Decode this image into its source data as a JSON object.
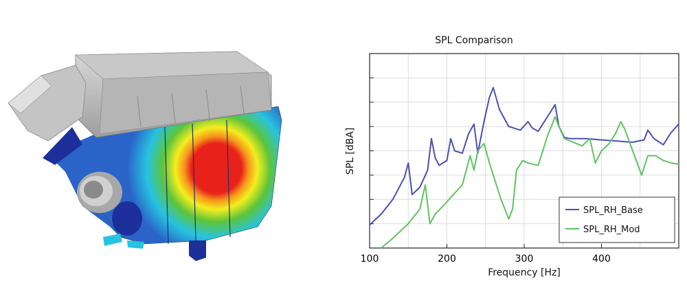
{
  "figure": {
    "left_panel": "fea-contour-airbox",
    "colors": {
      "red": "#e8211b",
      "orange": "#f6951c",
      "yellow": "#f4ee1e",
      "green": "#5ec43b",
      "cyan": "#27c3e0",
      "blue": "#2a64c9",
      "navy": "#1d2f9a",
      "grey": "#bdbdbd"
    }
  },
  "chart_data": {
    "type": "line",
    "title": "SPL Comparison",
    "xlabel": "Frequency [Hz]",
    "ylabel": "SPL [dBA]",
    "xlim": [
      100,
      500
    ],
    "ylim": [
      0,
      8
    ],
    "x_ticks": [
      100,
      200,
      300,
      400
    ],
    "y_gridlines": [
      1,
      2,
      3,
      4,
      5,
      6,
      7
    ],
    "x_gridlines": [
      100,
      150,
      200,
      250,
      300,
      350,
      400,
      450
    ],
    "legend_position": "bottom-right",
    "series": [
      {
        "name": "SPL_RH_Base",
        "color": "#4b4fb0",
        "x": [
          100,
          115,
          130,
          145,
          150,
          155,
          165,
          175,
          180,
          185,
          190,
          200,
          205,
          210,
          220,
          228,
          235,
          240,
          248,
          255,
          260,
          268,
          280,
          295,
          305,
          310,
          318,
          330,
          340,
          345,
          352,
          360,
          380,
          400,
          420,
          440,
          455,
          460,
          468,
          480,
          490,
          500
        ],
        "y": [
          0.95,
          1.4,
          2.0,
          2.9,
          3.5,
          2.2,
          2.5,
          3.2,
          4.5,
          3.7,
          3.4,
          3.6,
          4.5,
          4.0,
          3.9,
          4.7,
          5.1,
          3.9,
          5.2,
          6.2,
          6.6,
          5.7,
          5.0,
          4.85,
          5.2,
          4.95,
          4.8,
          5.4,
          5.9,
          5.0,
          4.55,
          4.5,
          4.5,
          4.45,
          4.4,
          4.35,
          4.45,
          4.85,
          4.5,
          4.25,
          4.75,
          5.1
        ]
      },
      {
        "name": "SPL_RH_Mod",
        "color": "#5fc35f",
        "x": [
          115,
          130,
          150,
          165,
          172,
          178,
          185,
          200,
          220,
          230,
          235,
          240,
          248,
          255,
          270,
          280,
          285,
          290,
          298,
          305,
          318,
          330,
          340,
          345,
          352,
          360,
          375,
          385,
          392,
          400,
          410,
          418,
          425,
          430,
          445,
          452,
          460,
          470,
          480,
          490,
          500
        ],
        "y": [
          0,
          0.4,
          1.0,
          1.6,
          2.6,
          1.0,
          1.4,
          1.9,
          2.6,
          3.8,
          3.2,
          4.0,
          4.3,
          3.5,
          2.0,
          1.2,
          1.6,
          3.2,
          3.6,
          3.5,
          3.4,
          4.6,
          5.4,
          5.0,
          4.5,
          4.4,
          4.2,
          4.5,
          3.5,
          4.0,
          4.3,
          4.7,
          5.2,
          4.9,
          3.6,
          3.0,
          3.8,
          3.8,
          3.6,
          3.5,
          3.45
        ]
      }
    ]
  }
}
